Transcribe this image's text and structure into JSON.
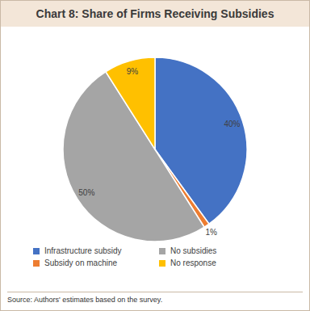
{
  "chart_data": {
    "type": "pie",
    "title": "Chart 8: Share of Firms Receiving Subsidies",
    "categories": [
      "Infrastructure subsidy",
      "Subsidy on machine",
      "No subsidies",
      "No response"
    ],
    "values": [
      40,
      1,
      50,
      9
    ],
    "value_labels": [
      "40%",
      "1%",
      "50%",
      "9%"
    ],
    "colors": [
      "#4472c4",
      "#ed7d31",
      "#a5a5a5",
      "#ffc000"
    ],
    "data_labels": true,
    "legend": "bottom",
    "source": "Source: Authors' estimates based on the survey."
  }
}
